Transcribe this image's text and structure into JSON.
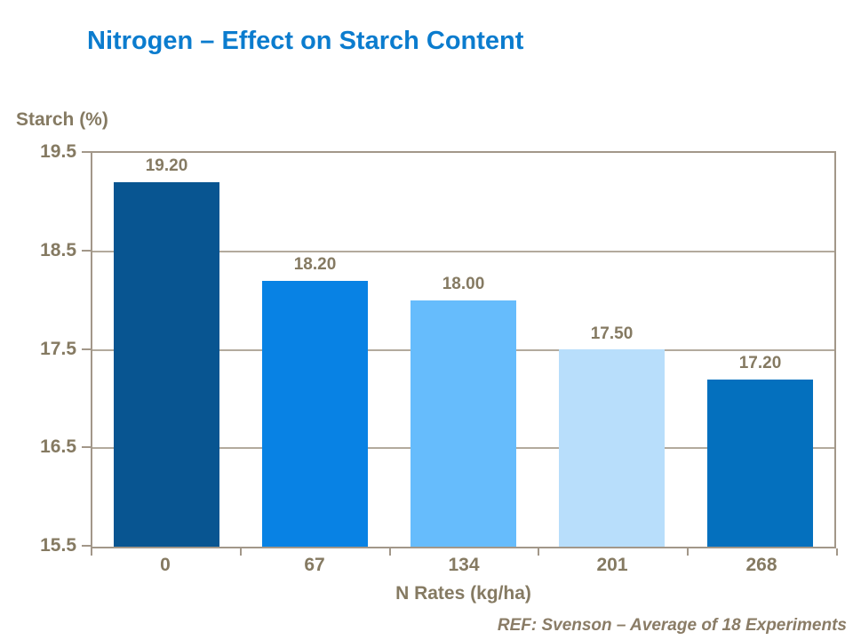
{
  "slide": {
    "title": "Nitrogen – Effect on Starch Content",
    "footer_ref": "REF: Svenson – Average of 18 Experiments"
  },
  "chart_data": {
    "type": "bar",
    "title": "Nitrogen – Effect on Starch Content",
    "y_axis_label": "Starch (%)",
    "xlabel": "N Rates (kg/ha)",
    "categories": [
      "0",
      "67",
      "134",
      "201",
      "268"
    ],
    "values": [
      19.2,
      18.2,
      18.0,
      17.5,
      17.2
    ],
    "data_labels": [
      "19.20",
      "18.20",
      "18.00",
      "17.50",
      "17.20"
    ],
    "bar_colors": [
      "#085591",
      "#0882E4",
      "#66BCFC",
      "#B8DEFB",
      "#0470BE"
    ],
    "ylim": [
      15.5,
      19.5
    ],
    "yticks": [
      19.5,
      18.5,
      17.5,
      16.5,
      15.5
    ],
    "ytick_labels": [
      "19.5",
      "18.5",
      "17.5",
      "16.5",
      "15.5"
    ],
    "grid": true,
    "legend": false,
    "annotation": "REF: Svenson – Average of 18 Experiments"
  },
  "colors": {
    "title_text": "#0B7CCE",
    "label_text": "#857A62",
    "axis_line": "#A29789",
    "grid_line": "#B3AA9D",
    "background": "#FFFFFF"
  }
}
